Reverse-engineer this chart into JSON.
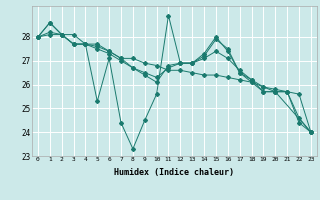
{
  "background_color": "#cce9e9",
  "grid_color": "#ffffff",
  "line_color": "#1a7a6e",
  "xlabel": "Humidex (Indice chaleur)",
  "ylim": [
    23,
    29
  ],
  "xlim": [
    -0.5,
    23.5
  ],
  "yticks": [
    23,
    24,
    25,
    26,
    27,
    28
  ],
  "xticks": [
    0,
    1,
    2,
    3,
    4,
    5,
    6,
    7,
    8,
    9,
    10,
    11,
    12,
    13,
    14,
    15,
    16,
    17,
    18,
    19,
    20,
    21,
    22,
    23
  ],
  "series": [
    [
      28.0,
      28.6,
      28.1,
      28.1,
      27.7,
      25.3,
      27.1,
      24.4,
      23.3,
      24.5,
      25.6,
      28.9,
      26.9,
      26.9,
      27.3,
      28.0,
      27.4,
      26.5,
      26.1,
      25.7,
      25.7,
      null,
      null,
      24.0
    ],
    [
      28.0,
      28.6,
      28.1,
      27.7,
      27.7,
      27.7,
      27.4,
      27.1,
      27.1,
      26.9,
      26.8,
      26.6,
      26.6,
      26.5,
      26.4,
      26.4,
      26.3,
      26.2,
      26.1,
      25.9,
      25.8,
      25.7,
      25.6,
      24.0
    ],
    [
      28.0,
      28.1,
      28.1,
      27.7,
      27.7,
      27.5,
      27.3,
      27.0,
      26.7,
      26.4,
      26.1,
      26.8,
      26.9,
      26.9,
      27.2,
      27.9,
      27.5,
      26.5,
      26.2,
      25.7,
      25.7,
      25.7,
      24.4,
      24.0
    ],
    [
      28.0,
      28.2,
      28.1,
      27.7,
      27.7,
      27.6,
      27.4,
      27.1,
      26.7,
      26.5,
      26.3,
      26.7,
      26.9,
      26.9,
      27.1,
      27.4,
      27.1,
      26.6,
      26.2,
      25.9,
      25.7,
      25.7,
      24.6,
      24.0
    ]
  ]
}
